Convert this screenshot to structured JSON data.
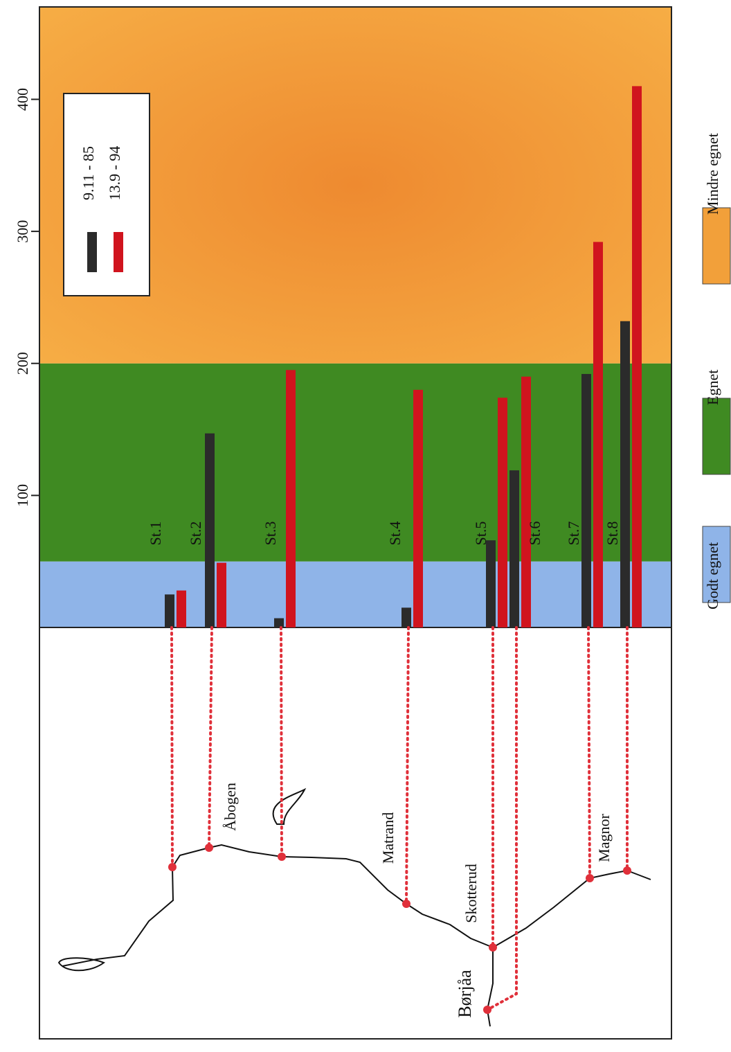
{
  "chart_data": {
    "type": "bar",
    "categories": [
      "St.1",
      "St.2",
      "St.3",
      "St.4",
      "St.5",
      "St.6",
      "St.7",
      "St.8"
    ],
    "series": [
      {
        "name": "9.11 - 85",
        "color": "#2b2b2b",
        "values": [
          25,
          147,
          7,
          15,
          66,
          119,
          192,
          232
        ]
      },
      {
        "name": "13.9 - 94",
        "color": "#d0141e",
        "values": [
          28,
          49,
          195,
          180,
          174,
          190,
          292,
          410
        ]
      }
    ],
    "ylim": [
      0,
      470
    ],
    "yticks": [
      100,
      200,
      300,
      400
    ],
    "bands": [
      {
        "name": "Godt egnet",
        "color": "#8fb4e8",
        "range": [
          0,
          50
        ]
      },
      {
        "name": "Egnet",
        "color": "#3f8a22",
        "range": [
          50,
          200
        ]
      },
      {
        "name": "Mindre egnet",
        "color": "#f2a03a",
        "range": [
          200,
          470
        ]
      }
    ],
    "places": [
      "Åbogen",
      "Matrand",
      "Skotterud",
      "Magnor",
      "Børjåa"
    ]
  }
}
